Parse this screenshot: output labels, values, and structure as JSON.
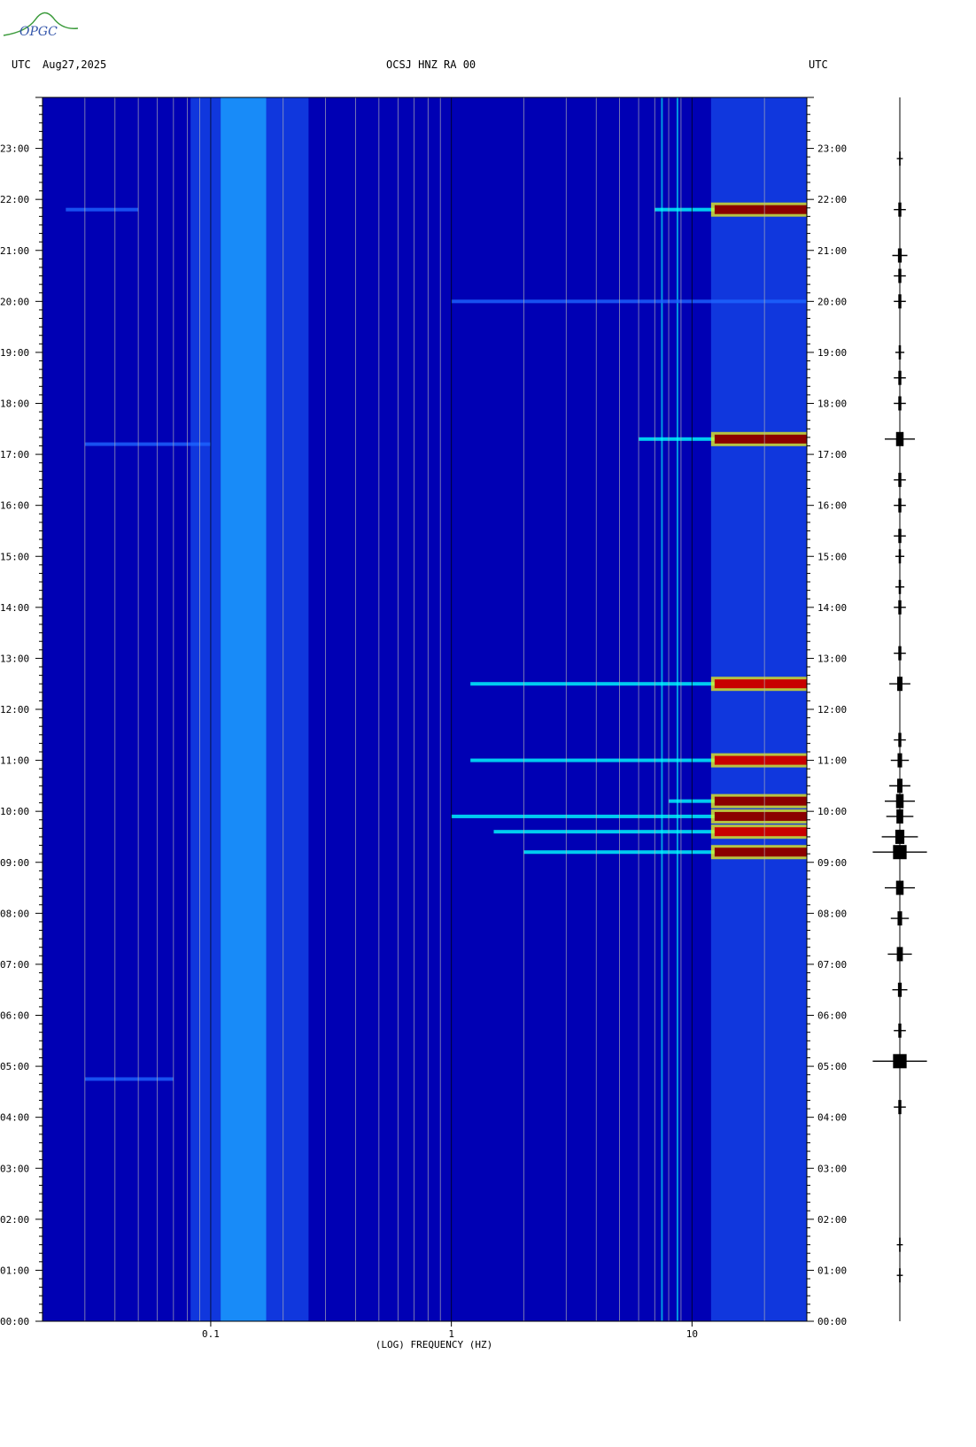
{
  "header": {
    "left_tz": "UTC",
    "date": "Aug27,2025",
    "station": "OCSJ HNZ RA 00",
    "right_tz": "UTC"
  },
  "logo": {
    "text": "OPGC"
  },
  "chart_data": {
    "type": "heatmap",
    "title": "OCSJ HNZ RA 00",
    "xlabel": "(LOG) FREQUENCY (HZ)",
    "x_scale": "log",
    "xlim_hz": [
      0.02,
      30
    ],
    "x_ticks": [
      "0.1",
      "1",
      "10"
    ],
    "x_tick_values": [
      0.1,
      1,
      10
    ],
    "y_ticks": [
      "00:00",
      "01:00",
      "02:00",
      "03:00",
      "04:00",
      "05:00",
      "06:00",
      "07:00",
      "08:00",
      "09:00",
      "10:00",
      "11:00",
      "12:00",
      "13:00",
      "14:00",
      "15:00",
      "16:00",
      "17:00",
      "18:00",
      "19:00",
      "20:00",
      "21:00",
      "22:00",
      "23:00"
    ],
    "y_range_hours": [
      0,
      24
    ],
    "background_energy_band_hz": [
      0.11,
      0.17
    ],
    "line_frequency_hz": [
      7.5,
      8.7
    ],
    "events": [
      {
        "time_h": 4.75,
        "fmin_hz": 0.03,
        "fmax_hz": 0.07,
        "level": 0.45
      },
      {
        "time_h": 17.2,
        "fmin_hz": 0.03,
        "fmax_hz": 0.1,
        "level": 0.45
      },
      {
        "time_h": 21.8,
        "fmin_hz": 0.025,
        "fmax_hz": 0.05,
        "level": 0.5
      },
      {
        "time_h": 21.8,
        "fmin_hz": 7.0,
        "fmax_hz": 30,
        "level": 1.0
      },
      {
        "time_h": 17.3,
        "fmin_hz": 6.0,
        "fmax_hz": 30,
        "level": 1.0
      },
      {
        "time_h": 9.2,
        "fmin_hz": 2.0,
        "fmax_hz": 30,
        "level": 0.95
      },
      {
        "time_h": 9.6,
        "fmin_hz": 1.5,
        "fmax_hz": 30,
        "level": 0.85
      },
      {
        "time_h": 9.9,
        "fmin_hz": 1.0,
        "fmax_hz": 30,
        "level": 0.9
      },
      {
        "time_h": 10.2,
        "fmin_hz": 8.0,
        "fmax_hz": 30,
        "level": 0.95
      },
      {
        "time_h": 11.0,
        "fmin_hz": 1.2,
        "fmax_hz": 30,
        "level": 0.75
      },
      {
        "time_h": 12.5,
        "fmin_hz": 1.2,
        "fmax_hz": 30,
        "level": 0.75
      },
      {
        "time_h": 20.0,
        "fmin_hz": 1.0,
        "fmax_hz": 30,
        "level": 0.6
      }
    ],
    "seismogram_events_h": [
      0.9,
      1.5,
      4.2,
      5.1,
      5.7,
      6.5,
      7.2,
      7.9,
      8.5,
      9.2,
      9.5,
      9.9,
      10.2,
      10.5,
      11.0,
      11.4,
      12.5,
      13.1,
      14.0,
      14.4,
      15.0,
      15.4,
      16.0,
      16.5,
      17.3,
      18.0,
      18.5,
      19.0,
      20.0,
      20.5,
      20.9,
      21.8,
      22.8
    ],
    "seismogram_amplitudes": [
      0.1,
      0.1,
      0.2,
      0.9,
      0.2,
      0.25,
      0.4,
      0.3,
      0.5,
      0.9,
      0.6,
      0.45,
      0.5,
      0.35,
      0.3,
      0.2,
      0.35,
      0.2,
      0.2,
      0.15,
      0.15,
      0.2,
      0.2,
      0.2,
      0.5,
      0.2,
      0.2,
      0.15,
      0.2,
      0.2,
      0.25,
      0.2,
      0.1
    ]
  },
  "colors": {
    "background": "#0000b4",
    "mid": "#1e64ff",
    "cyan": "#00ffff",
    "yellow": "#ffff00",
    "red": "#c80000",
    "dark_red": "#8b0000",
    "logo_green": "#3a9a3a",
    "logo_blue": "#3355aa"
  }
}
